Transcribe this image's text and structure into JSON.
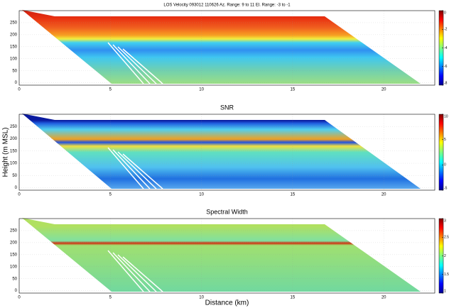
{
  "chart_data": [
    {
      "type": "heatmap",
      "title": "LOS Velocity  093012  110626  Az. Range: 9 to 11   El. Range: -3 to -1",
      "xlim": [
        0,
        22.8
      ],
      "ylim": [
        -10,
        300
      ],
      "xticks": [
        0,
        5,
        10,
        15,
        20
      ],
      "yticks": [
        0,
        50,
        100,
        150,
        200,
        250
      ],
      "clim": [
        -8,
        0
      ],
      "cticks": [
        0,
        -2,
        -4,
        -6,
        -8
      ],
      "grid": true
    },
    {
      "type": "heatmap",
      "title": "SNR",
      "y_label": "Height (m MSL)",
      "xlim": [
        0,
        22.8
      ],
      "ylim": [
        -10,
        300
      ],
      "xticks": [
        0,
        5,
        10,
        15,
        20
      ],
      "yticks": [
        0,
        50,
        100,
        150,
        200,
        250
      ],
      "clim": [
        -5,
        10
      ],
      "cticks": [
        10,
        5,
        0,
        -5
      ],
      "grid": true
    },
    {
      "type": "heatmap",
      "title": "Spectral Width",
      "x_label": "Distance (km)",
      "xlim": [
        0,
        22.8
      ],
      "ylim": [
        -10,
        300
      ],
      "xticks": [
        0,
        5,
        10,
        15,
        20
      ],
      "yticks": [
        0,
        50,
        100,
        150,
        200,
        250
      ],
      "clim": [
        1,
        3
      ],
      "cticks": [
        3,
        2.5,
        2,
        1.5,
        1
      ],
      "grid": true
    }
  ]
}
